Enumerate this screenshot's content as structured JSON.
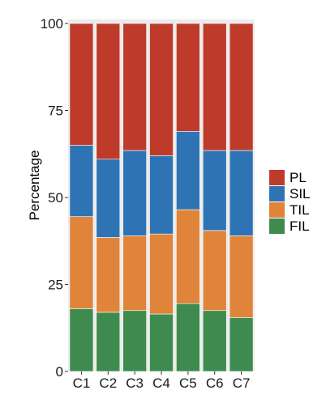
{
  "chart_data": {
    "type": "bar",
    "stacked": true,
    "categories": [
      "C1",
      "C2",
      "C3",
      "C4",
      "C5",
      "C6",
      "C7"
    ],
    "series": [
      {
        "name": "FIL",
        "color": "#3f8a4f",
        "values": [
          18,
          17,
          17.5,
          16.5,
          19.5,
          17.5,
          15.5
        ]
      },
      {
        "name": "TIL",
        "color": "#e0843a",
        "values": [
          26.5,
          21.5,
          21.5,
          23,
          27,
          23,
          23.5
        ]
      },
      {
        "name": "SIL",
        "color": "#2e74b5",
        "values": [
          20.5,
          22.5,
          24.5,
          22.5,
          22.5,
          23,
          24.5
        ]
      },
      {
        "name": "PL",
        "color": "#be3b2b",
        "values": [
          35,
          39,
          36.5,
          38,
          31,
          36.5,
          36.5
        ]
      }
    ],
    "legend_order": [
      "PL",
      "SIL",
      "TIL",
      "FIL"
    ],
    "ylabel": "Percentage",
    "xlabel": "",
    "ylim": [
      0,
      100
    ],
    "yticks": [
      0,
      25,
      50,
      75,
      100
    ],
    "grid": false,
    "legend": "right"
  }
}
